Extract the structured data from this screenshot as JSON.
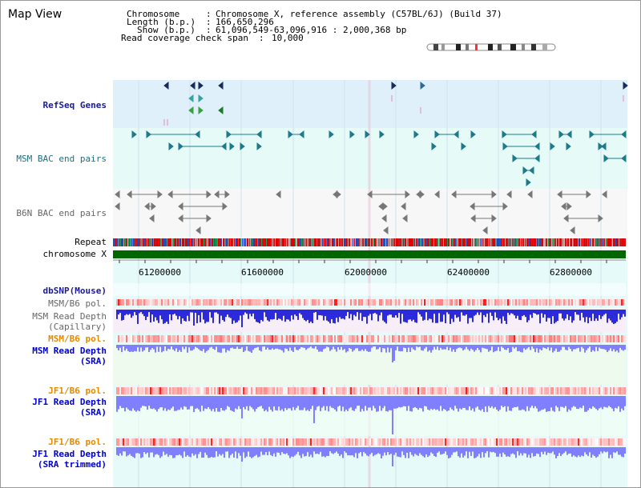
{
  "view": {
    "title": "Map View",
    "info_keys": [
      "Chromosome",
      "Length (b.p.)",
      "Show (b.p.)",
      "Read coverage check span"
    ],
    "info_vals": [
      "Chromosome X, reference assembly (C57BL/6J) (Build 37)",
      "166,650,296",
      "61,096,549-63,096,916 : 2,000,368 bp",
      "10,000"
    ]
  },
  "tracks": {
    "refseq": "RefSeq Genes",
    "msm_bac": "MSM BAC end pairs",
    "b6n_bac": "B6N BAC end pairs",
    "repeat": "Repeat",
    "chromosome": "chromosome X",
    "dbsnp": "dbSNP(Mouse)",
    "msm_b6_pol_1": "MSM/B6 pol.",
    "msm_depth_cap_1": "MSM Read Depth",
    "msm_depth_cap_2": "(Capillary)",
    "msm_b6_pol_2": "MSM/B6 pol.",
    "msm_depth_sra_1": "MSM Read Depth",
    "msm_depth_sra_2": "(SRA)",
    "jf1_b6_pol_1": "JF1/B6 pol.",
    "jf1_depth_sra_1": "JF1 Read Depth",
    "jf1_depth_sra_2": "(SRA)",
    "jf1_b6_pol_2": "JF1/B6 pol.",
    "jf1_depth_trim_1": "JF1 Read Depth",
    "jf1_depth_trim_2": "(SRA trimmed)"
  },
  "axis": {
    "ticks": [
      "61200000",
      "61600000",
      "62000000",
      "62400000",
      "62800000"
    ]
  },
  "colors": {
    "refseq_bg": "#dff0fa",
    "msm_bac_bg": "#e6faf8",
    "b6n_bac_bg": "#f5f5f5",
    "repeat_red": "#e00000",
    "chromosome_green": "#006600",
    "depth_bar": "#2b2bdb",
    "depth_bar_light": "#7f7fff",
    "lower_bg": "#e6fafa"
  }
}
